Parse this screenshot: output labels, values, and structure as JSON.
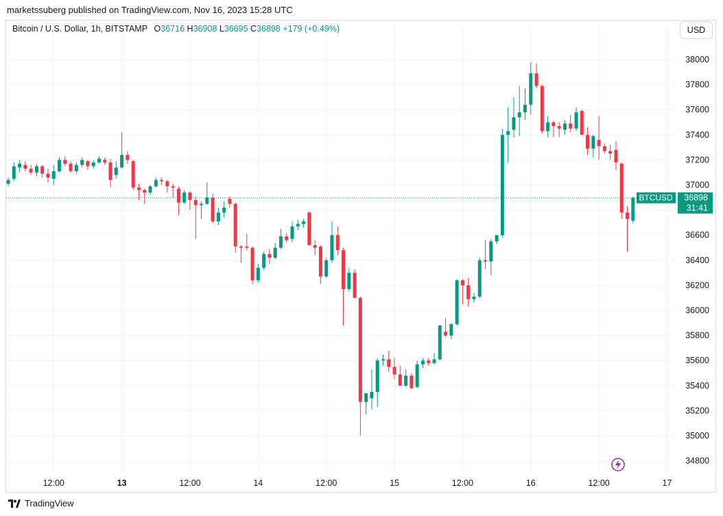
{
  "header": {
    "publisher": "marketssuberg published on TradingView.com, Nov 16, 2023 15:28 UTC"
  },
  "legend": {
    "name": "Bitcoin / U.S. Dollar, 1h, BITSTAMP",
    "open_label": "O",
    "open": "36716",
    "high_label": "H",
    "high": "36908",
    "low_label": "L",
    "low": "36695",
    "close_label": "C",
    "close": "36898",
    "change": "+179 (+0.49%)"
  },
  "toolbar": {
    "currency": "USD"
  },
  "price_tag": {
    "symbol": "BTCUSD",
    "price": "36898",
    "countdown": "31:41"
  },
  "footer": {
    "brand": "TradingView"
  },
  "colors": {
    "up": "#089981",
    "down": "#f23645",
    "grid": "#f0f3fa",
    "text": "#131722",
    "badge": "#9c27b0"
  },
  "chart_data": {
    "type": "candlestick",
    "title": "Bitcoin / U.S. Dollar, 1h, BITSTAMP",
    "interval": "1h",
    "y_ticks": [
      34800,
      35000,
      35200,
      35400,
      35600,
      35800,
      36000,
      36200,
      36400,
      36600,
      36800,
      37000,
      37200,
      37400,
      37600,
      37800,
      38000
    ],
    "ylim": [
      34700,
      38100
    ],
    "x_ticks": [
      {
        "label": "12:00",
        "index": 8,
        "bold": false
      },
      {
        "label": "13",
        "index": 20,
        "bold": true
      },
      {
        "label": "12:00",
        "index": 32,
        "bold": false
      },
      {
        "label": "14",
        "index": 44,
        "bold": false
      },
      {
        "label": "12:00",
        "index": 56,
        "bold": false
      },
      {
        "label": "15",
        "index": 68,
        "bold": false
      },
      {
        "label": "12:00",
        "index": 80,
        "bold": false
      },
      {
        "label": "16",
        "index": 92,
        "bold": false
      },
      {
        "label": "12:00",
        "index": 104,
        "bold": false
      },
      {
        "label": "17",
        "index": 116,
        "bold": false
      }
    ],
    "last_price": 36898,
    "grid": true,
    "candles": [
      [
        37010,
        37060,
        36990,
        37040
      ],
      [
        37050,
        37180,
        37030,
        37150
      ],
      [
        37140,
        37200,
        37100,
        37170
      ],
      [
        37160,
        37190,
        37110,
        37130
      ],
      [
        37130,
        37160,
        37080,
        37100
      ],
      [
        37100,
        37170,
        37070,
        37150
      ],
      [
        37150,
        37160,
        37060,
        37090
      ],
      [
        37090,
        37130,
        37020,
        37060
      ],
      [
        37050,
        37160,
        37000,
        37110
      ],
      [
        37110,
        37220,
        37100,
        37200
      ],
      [
        37200,
        37230,
        37150,
        37170
      ],
      [
        37170,
        37190,
        37100,
        37110
      ],
      [
        37110,
        37180,
        37090,
        37160
      ],
      [
        37160,
        37220,
        37140,
        37200
      ],
      [
        37190,
        37200,
        37120,
        37150
      ],
      [
        37150,
        37200,
        37130,
        37180
      ],
      [
        37180,
        37230,
        37170,
        37210
      ],
      [
        37200,
        37220,
        37160,
        37180
      ],
      [
        37180,
        37210,
        36980,
        37040
      ],
      [
        37080,
        37190,
        37050,
        37140
      ],
      [
        37140,
        37420,
        37130,
        37240
      ],
      [
        37240,
        37270,
        37170,
        37200
      ],
      [
        37190,
        37200,
        36960,
        36980
      ],
      [
        36980,
        37010,
        36880,
        36960
      ],
      [
        36960,
        36970,
        36850,
        36940
      ],
      [
        36940,
        37000,
        36920,
        36990
      ],
      [
        36990,
        37060,
        36980,
        37040
      ],
      [
        37040,
        37060,
        37000,
        37030
      ],
      [
        37030,
        37040,
        36940,
        36990
      ],
      [
        36990,
        37010,
        36900,
        36980
      ],
      [
        36970,
        36990,
        36760,
        36860
      ],
      [
        36860,
        36960,
        36850,
        36940
      ],
      [
        36940,
        36950,
        36800,
        36880
      ],
      [
        36880,
        36910,
        36570,
        36840
      ],
      [
        36840,
        36870,
        36730,
        36850
      ],
      [
        36850,
        37020,
        36840,
        36900
      ],
      [
        36900,
        36930,
        36700,
        36710
      ],
      [
        36710,
        36820,
        36680,
        36780
      ],
      [
        36780,
        36870,
        36740,
        36820
      ],
      [
        36890,
        36910,
        36820,
        36850
      ],
      [
        36850,
        36860,
        36460,
        36510
      ],
      [
        36510,
        36520,
        36380,
        36500
      ],
      [
        36510,
        36610,
        36480,
        36500
      ],
      [
        36500,
        36510,
        36210,
        36240
      ],
      [
        36240,
        36370,
        36220,
        36340
      ],
      [
        36340,
        36470,
        36320,
        36450
      ],
      [
        36450,
        36490,
        36370,
        36420
      ],
      [
        36420,
        36540,
        36410,
        36500
      ],
      [
        36500,
        36650,
        36490,
        36590
      ],
      [
        36590,
        36620,
        36540,
        36560
      ],
      [
        36570,
        36710,
        36540,
        36670
      ],
      [
        36670,
        36720,
        36640,
        36690
      ],
      [
        36690,
        36730,
        36660,
        36710
      ],
      [
        36780,
        36790,
        36520,
        36520
      ],
      [
        36520,
        36560,
        36440,
        36500
      ],
      [
        36510,
        36520,
        36210,
        36270
      ],
      [
        36270,
        36420,
        36260,
        36400
      ],
      [
        36400,
        36710,
        36380,
        36600
      ],
      [
        36600,
        36670,
        36440,
        36480
      ],
      [
        36480,
        36500,
        35880,
        36170
      ],
      [
        36170,
        36340,
        36150,
        36300
      ],
      [
        36300,
        36330,
        36110,
        36100
      ],
      [
        36100,
        36110,
        35000,
        35270
      ],
      [
        35270,
        35340,
        35170,
        35340
      ],
      [
        35300,
        35530,
        35210,
        35350
      ],
      [
        35350,
        35620,
        35230,
        35600
      ],
      [
        35600,
        35650,
        35560,
        35610
      ],
      [
        35610,
        35680,
        35510,
        35550
      ],
      [
        35550,
        35620,
        35450,
        35490
      ],
      [
        35490,
        35560,
        35400,
        35400
      ],
      [
        35400,
        35530,
        35390,
        35480
      ],
      [
        35480,
        35500,
        35370,
        35380
      ],
      [
        35390,
        35600,
        35380,
        35570
      ],
      [
        35570,
        35620,
        35540,
        35600
      ],
      [
        35600,
        35620,
        35560,
        35580
      ],
      [
        35580,
        35660,
        35570,
        35610
      ],
      [
        35610,
        35880,
        35600,
        35880
      ],
      [
        35830,
        35940,
        35790,
        35800
      ],
      [
        35800,
        35900,
        35770,
        35890
      ],
      [
        35890,
        36250,
        35880,
        36240
      ],
      [
        36240,
        36250,
        36050,
        36200
      ],
      [
        36200,
        36260,
        36030,
        36090
      ],
      [
        36090,
        36140,
        36060,
        36110
      ],
      [
        36110,
        36420,
        36100,
        36400
      ],
      [
        36400,
        36560,
        36330,
        36390
      ],
      [
        36390,
        36570,
        36280,
        36550
      ],
      [
        36550,
        36600,
        36530,
        36600
      ],
      [
        36600,
        37450,
        36580,
        37400
      ],
      [
        37400,
        37620,
        37180,
        37430
      ],
      [
        37440,
        37700,
        37380,
        37540
      ],
      [
        37540,
        37790,
        37390,
        37580
      ],
      [
        37580,
        37770,
        37520,
        37640
      ],
      [
        37640,
        37980,
        37560,
        37890
      ],
      [
        37890,
        37970,
        37770,
        37790
      ],
      [
        37790,
        37800,
        37410,
        37430
      ],
      [
        37430,
        37550,
        37380,
        37500
      ],
      [
        37500,
        37510,
        37380,
        37470
      ],
      [
        37470,
        37500,
        37380,
        37450
      ],
      [
        37440,
        37520,
        37400,
        37490
      ],
      [
        37490,
        37560,
        37420,
        37450
      ],
      [
        37450,
        37620,
        37430,
        37580
      ],
      [
        37590,
        37600,
        37400,
        37400
      ],
      [
        37400,
        37460,
        37240,
        37290
      ],
      [
        37290,
        37400,
        37220,
        37390
      ],
      [
        37360,
        37550,
        37200,
        37310
      ],
      [
        37310,
        37330,
        37250,
        37270
      ],
      [
        37270,
        37320,
        37200,
        37250
      ],
      [
        37280,
        37350,
        37120,
        37180
      ],
      [
        37170,
        37180,
        36730,
        36780
      ],
      [
        36780,
        36830,
        36470,
        36730
      ],
      [
        36716,
        36908,
        36695,
        36898
      ]
    ]
  }
}
